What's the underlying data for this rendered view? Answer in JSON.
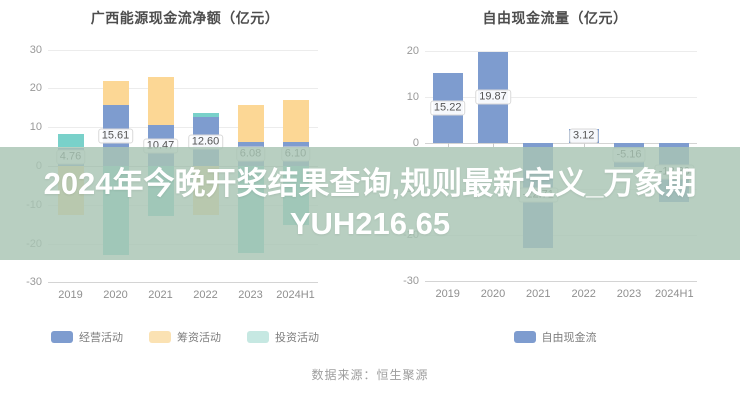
{
  "overlay": {
    "line1": "2024年今晚开奖结果查询,规则最新定义_万象期",
    "line2": "YUH216.65",
    "background": "#a8c4b3",
    "text_color": "#ffffff"
  },
  "source": {
    "text": "数据来源：恒生聚源"
  },
  "colors": {
    "operating_blue": "#7e9ccf",
    "financing_orange": "#fcd795",
    "investing_teal": "#79d1ca",
    "grid": "#ececec",
    "axis": "#d4d4d4",
    "tick_text": "#999999",
    "title_text": "#4d4d4d"
  },
  "chart_data": [
    {
      "type": "bar",
      "stacked": true,
      "title": "广西能源现金流净额（亿元）",
      "categories": [
        "2019",
        "2020",
        "2021",
        "2022",
        "2023",
        "2024H1"
      ],
      "series": [
        {
          "name": "经营活动",
          "color": "#7e9ccf",
          "legend_color": "#7e9ccf",
          "labeled": true,
          "values": [
            4.76,
            15.61,
            10.47,
            12.6,
            6.08,
            6.1
          ]
        },
        {
          "name": "筹资活动",
          "color": "#fcd795",
          "legend_color": "#fbe2b3",
          "labeled": false,
          "values": [
            -12.5,
            6.4,
            12.4,
            -12.5,
            9.7,
            10.9
          ]
        },
        {
          "name": "投资活动",
          "color": "#79d1ca",
          "legend_color": "#c6e8e2",
          "labeled": false,
          "values": [
            3.4,
            -22.8,
            -13.0,
            1.2,
            -22.3,
            -15.1
          ]
        }
      ],
      "ylim": [
        -30,
        30
      ],
      "ytick_step": 10,
      "grid": true,
      "legend_position": "bottom"
    },
    {
      "type": "bar",
      "stacked": false,
      "title": "自由现金流量（亿元）",
      "categories": [
        "2019",
        "2020",
        "2021",
        "2022",
        "2023",
        "2024H1"
      ],
      "series": [
        {
          "name": "自由现金流",
          "color": "#7e9ccf",
          "legend_color": "#7e9ccf",
          "labeled": true,
          "values": [
            15.22,
            19.87,
            -22.71,
            3.12,
            -5.16,
            -12.8
          ]
        }
      ],
      "ylim": [
        -30,
        20
      ],
      "ytick_step": 10,
      "grid": true,
      "legend_position": "bottom"
    }
  ]
}
